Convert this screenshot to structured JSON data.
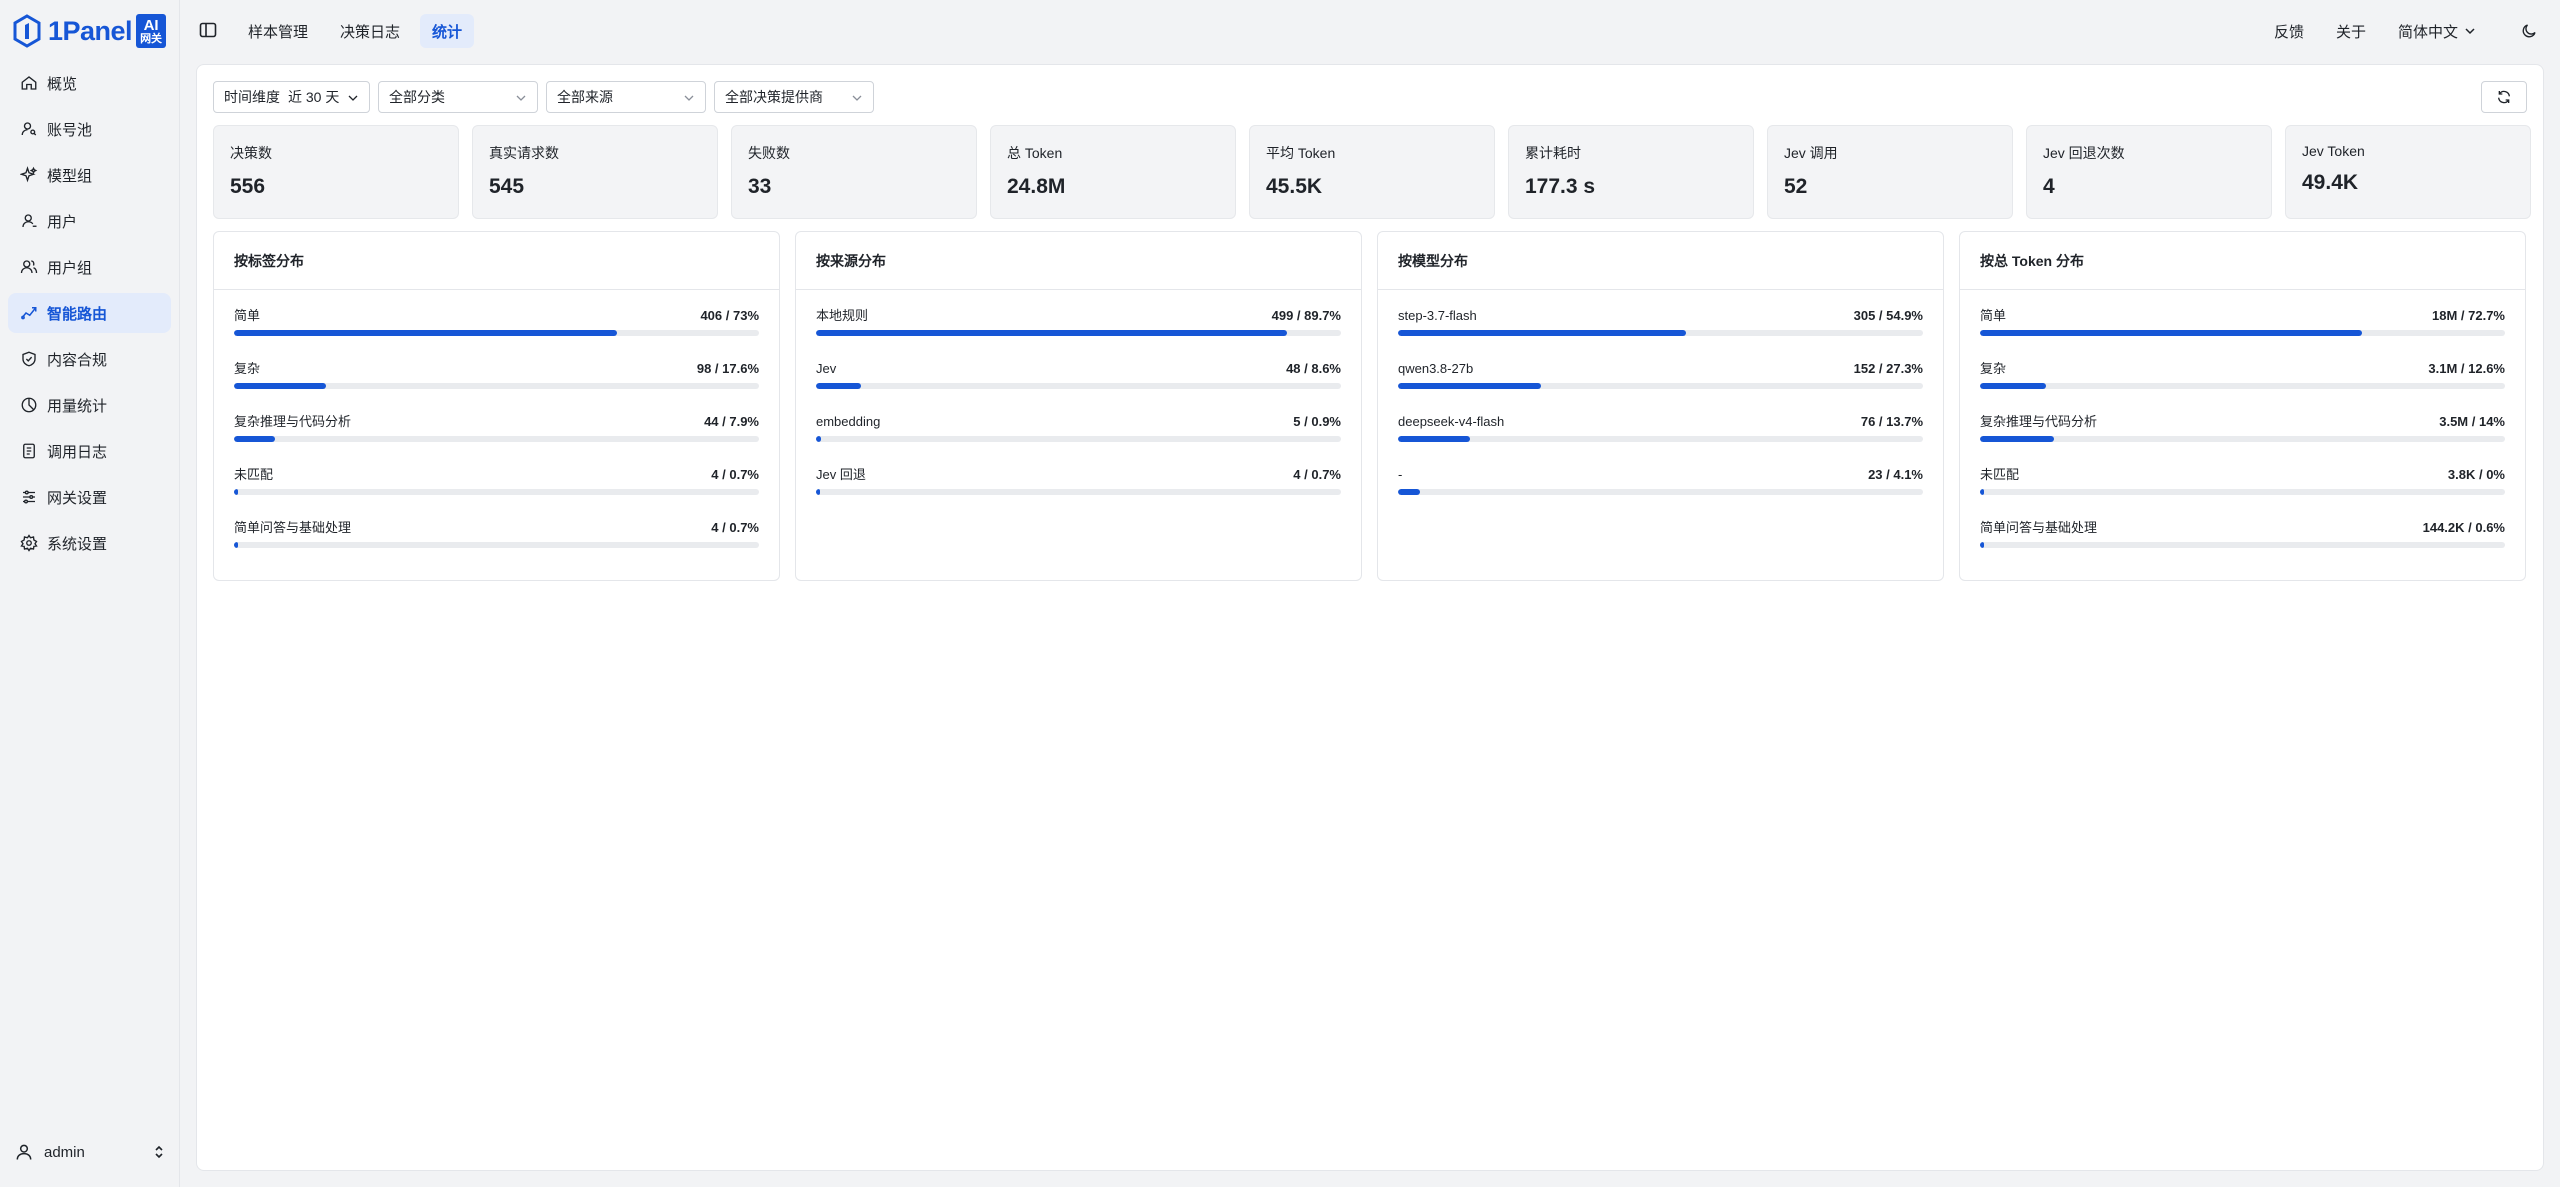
{
  "brand": {
    "name": "1Panel",
    "badge_line1": "AI",
    "badge_line2": "网关",
    "accent": "#1656d6"
  },
  "sidebar": {
    "items": [
      {
        "label": "概览",
        "icon": "home-icon",
        "active": false
      },
      {
        "label": "账号池",
        "icon": "user-key-icon",
        "active": false
      },
      {
        "label": "模型组",
        "icon": "sparkles-icon",
        "active": false
      },
      {
        "label": "用户",
        "icon": "user-icon",
        "active": false
      },
      {
        "label": "用户组",
        "icon": "users-icon",
        "active": false
      },
      {
        "label": "智能路由",
        "icon": "route-icon",
        "active": true
      },
      {
        "label": "内容合规",
        "icon": "shield-icon",
        "active": false
      },
      {
        "label": "用量统计",
        "icon": "pie-chart-icon",
        "active": false
      },
      {
        "label": "调用日志",
        "icon": "log-icon",
        "active": false
      },
      {
        "label": "网关设置",
        "icon": "sliders-icon",
        "active": false
      },
      {
        "label": "系统设置",
        "icon": "gear-icon",
        "active": false
      }
    ],
    "user": {
      "name": "admin"
    }
  },
  "topbar": {
    "tabs": [
      {
        "label": "样本管理",
        "active": false
      },
      {
        "label": "决策日志",
        "active": false
      },
      {
        "label": "统计",
        "active": true
      }
    ],
    "feedback": "反馈",
    "about": "关于",
    "language": "简体中文"
  },
  "filters": {
    "time_label": "时间维度",
    "time_value": "近 30 天",
    "category": "全部分类",
    "source": "全部来源",
    "provider": "全部决策提供商"
  },
  "stats": [
    {
      "title": "决策数",
      "value": "556"
    },
    {
      "title": "真实请求数",
      "value": "545"
    },
    {
      "title": "失败数",
      "value": "33"
    },
    {
      "title": "总 Token",
      "value": "24.8M"
    },
    {
      "title": "平均 Token",
      "value": "45.5K"
    },
    {
      "title": "累计耗时",
      "value": "177.3 s"
    },
    {
      "title": "Jev 调用",
      "value": "52"
    },
    {
      "title": "Jev 回退次数",
      "value": "4"
    },
    {
      "title": "Jev Token",
      "value": "49.4K"
    }
  ],
  "panels": [
    {
      "title": "按标签分布",
      "rows": [
        {
          "label": "简单",
          "value": "406 / 73%",
          "fraction": 0.73
        },
        {
          "label": "复杂",
          "value": "98 / 17.6%",
          "fraction": 0.176
        },
        {
          "label": "复杂推理与代码分析",
          "value": "44 / 7.9%",
          "fraction": 0.079
        },
        {
          "label": "未匹配",
          "value": "4 / 0.7%",
          "fraction": 0.007
        },
        {
          "label": "简单问答与基础处理",
          "value": "4 / 0.7%",
          "fraction": 0.007
        }
      ]
    },
    {
      "title": "按来源分布",
      "rows": [
        {
          "label": "本地规则",
          "value": "499 / 89.7%",
          "fraction": 0.897
        },
        {
          "label": "Jev",
          "value": "48 / 8.6%",
          "fraction": 0.086
        },
        {
          "label": "embedding",
          "value": "5 / 0.9%",
          "fraction": 0.009
        },
        {
          "label": "Jev 回退",
          "value": "4 / 0.7%",
          "fraction": 0.007
        }
      ]
    },
    {
      "title": "按模型分布",
      "rows": [
        {
          "label": "step-3.7-flash",
          "value": "305 / 54.9%",
          "fraction": 0.549
        },
        {
          "label": "qwen3.8-27b",
          "value": "152 / 27.3%",
          "fraction": 0.273
        },
        {
          "label": "deepseek-v4-flash",
          "value": "76 / 13.7%",
          "fraction": 0.137
        },
        {
          "label": "-",
          "value": "23 / 4.1%",
          "fraction": 0.041
        }
      ]
    },
    {
      "title": "按总 Token 分布",
      "rows": [
        {
          "label": "简单",
          "value": "18M / 72.7%",
          "fraction": 0.727
        },
        {
          "label": "复杂",
          "value": "3.1M / 12.6%",
          "fraction": 0.126
        },
        {
          "label": "复杂推理与代码分析",
          "value": "3.5M / 14%",
          "fraction": 0.14
        },
        {
          "label": "未匹配",
          "value": "3.8K / 0%",
          "fraction": 0.0
        },
        {
          "label": "简单问答与基础处理",
          "value": "144.2K / 0.6%",
          "fraction": 0.006
        }
      ]
    }
  ]
}
